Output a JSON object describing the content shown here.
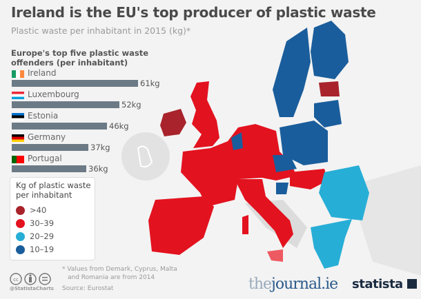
{
  "title": "Ireland is the EU's top producer of plastic waste",
  "subtitle": "Plastic waste per inhabitant in 2015 (kg)*",
  "colors": {
    "gt40": "#a8232b",
    "c30_39": "#e3121f",
    "c20_29": "#27aed6",
    "c10_19": "#1a5d9c",
    "no_data": "#dcdcdc",
    "bar": "#6c7a86"
  },
  "chart_data": [
    {
      "type": "bar",
      "orientation": "horizontal",
      "title": "Europe's top five plastic waste offenders (per inhabitant)",
      "categories": [
        "Ireland",
        "Luxembourg",
        "Estonia",
        "Germany",
        "Portugal"
      ],
      "values": [
        61,
        52,
        46,
        37,
        36
      ],
      "value_labels": [
        "61kg",
        "52kg",
        "46kg",
        "37kg",
        "36kg"
      ],
      "unit": "kg"
    },
    {
      "type": "choropleth-map",
      "legend_title": "Kg of plastic waste per inhabitant",
      "legend": [
        {
          "label": ">40",
          "color": "#a8232b"
        },
        {
          "label": "30–39",
          "color": "#e3121f"
        },
        {
          "label": "20–29",
          "color": "#27aed6"
        },
        {
          "label": "10–19",
          "color": "#1a5d9c"
        }
      ],
      "legend_placement": "bottom-left"
    }
  ],
  "footnote_line1": "* Values from Demark, Cyprus, Malta",
  "footnote_line2": "and Romania are from 2014",
  "source": "Source: Eurostat",
  "credit": "@StatistaCharts",
  "logos": {
    "journal_the": "the",
    "journal_main": "journal.ie",
    "statista": "statista"
  }
}
